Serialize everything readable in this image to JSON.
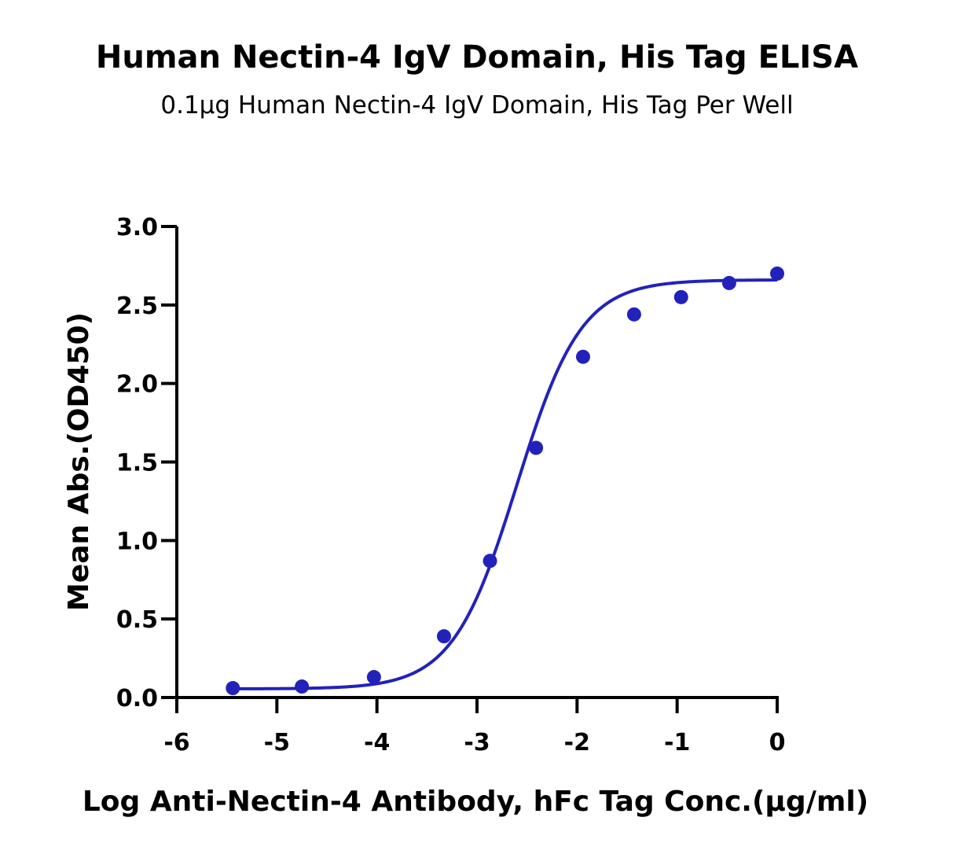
{
  "chart_data": {
    "type": "scatter",
    "title": "Human Nectin-4 IgV Domain, His Tag ELISA",
    "subtitle": "0.1µg Human Nectin-4 IgV Domain, His Tag Per Well",
    "xlabel": "Log Anti-Nectin-4 Antibody, hFc Tag Conc.(µg/ml)",
    "ylabel": "Mean Abs.(OD450)",
    "xlim": [
      -6,
      0
    ],
    "ylim": [
      0,
      3.0
    ],
    "x_ticks": [
      -6,
      -5,
      -4,
      -3,
      -2,
      -1,
      0
    ],
    "x_tick_labels": [
      "-6",
      "-5",
      "-4",
      "-3",
      "-2",
      "-1",
      "0"
    ],
    "y_ticks": [
      0,
      0.5,
      1.0,
      1.5,
      2.0,
      2.5,
      3.0
    ],
    "y_tick_labels": [
      "0.0",
      "0.5",
      "1.0",
      "1.5",
      "2.0",
      "2.5",
      "3.0"
    ],
    "grid": false,
    "color": "#2222bb",
    "series": [
      {
        "x": [
          -5.44,
          -4.75,
          -4.03,
          -3.33,
          -2.87,
          -2.41,
          -1.94,
          -1.43,
          -0.96,
          -0.48,
          0.0
        ],
        "y": [
          0.06,
          0.07,
          0.13,
          0.39,
          0.87,
          1.59,
          2.17,
          2.44,
          2.55,
          2.64,
          2.7
        ],
        "fit": "4PL"
      }
    ]
  }
}
